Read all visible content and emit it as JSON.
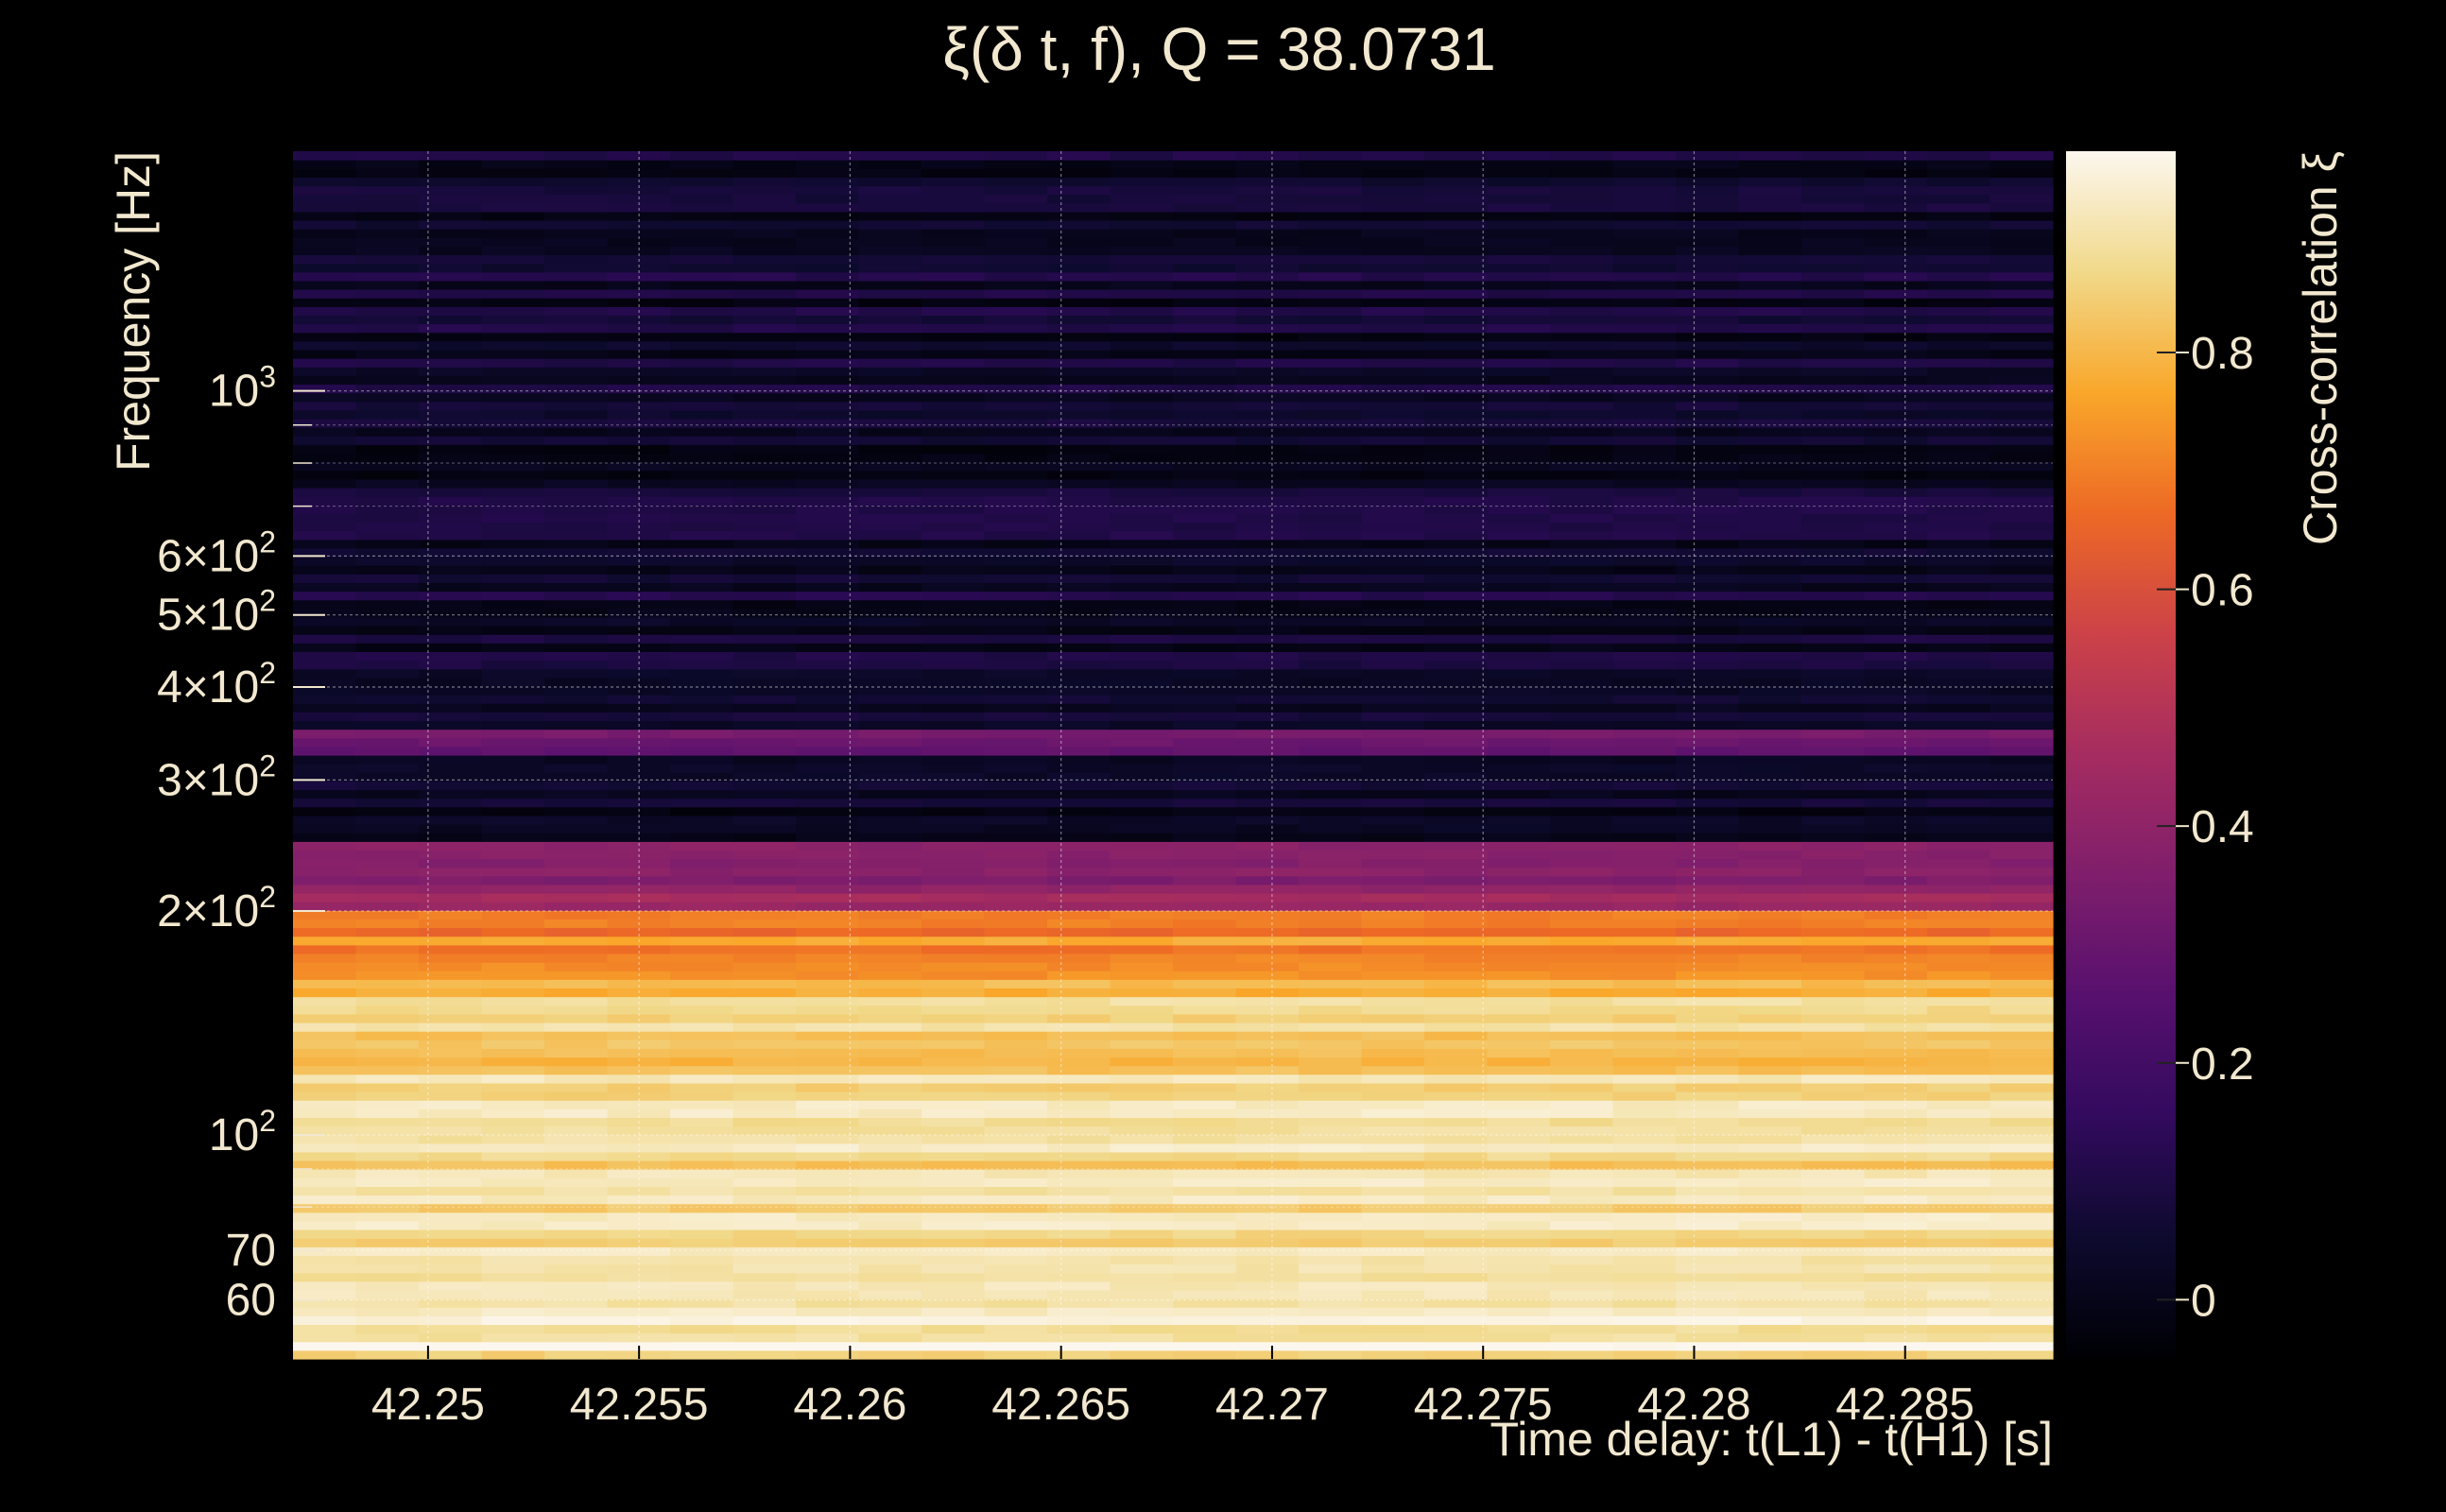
{
  "chart_data": {
    "type": "heatmap",
    "title": "ξ(δ t, f), Q = 38.0731",
    "xlabel": "Time delay: t(L1) - t(H1) [s]",
    "ylabel": "Frequency [Hz]",
    "colorbar_label": "Cross-correlation ξ",
    "colormap": "inferno",
    "background": "#000000",
    "text_color": "#f2e8cf",
    "y_scale": "log",
    "grid": true,
    "xlim": [
      42.2468,
      42.2885
    ],
    "ylim": [
      50,
      2100
    ],
    "x_ticks": [
      {
        "value": 42.25,
        "label": "42.25"
      },
      {
        "value": 42.255,
        "label": "42.255"
      },
      {
        "value": 42.26,
        "label": "42.26"
      },
      {
        "value": 42.265,
        "label": "42.265"
      },
      {
        "value": 42.27,
        "label": "42.27"
      },
      {
        "value": 42.275,
        "label": "42.275"
      },
      {
        "value": 42.28,
        "label": "42.28"
      },
      {
        "value": 42.285,
        "label": "42.285"
      }
    ],
    "y_ticks_labeled": [
      {
        "value": 60,
        "label": "60"
      },
      {
        "value": 70,
        "label": "70"
      },
      {
        "value": 100,
        "label": "10",
        "exp": "2"
      },
      {
        "value": 200,
        "label": "2×10",
        "exp": "2"
      },
      {
        "value": 300,
        "label": "3×10",
        "exp": "2"
      },
      {
        "value": 400,
        "label": "4×10",
        "exp": "2"
      },
      {
        "value": 500,
        "label": "5×10",
        "exp": "2"
      },
      {
        "value": 600,
        "label": "6×10",
        "exp": "2"
      },
      {
        "value": 1000,
        "label": "10",
        "exp": "3"
      }
    ],
    "y_ticks_minor": [
      80,
      90,
      700,
      800,
      900
    ],
    "clim": [
      -0.05,
      0.97
    ],
    "colorbar_ticks": [
      {
        "value": 0,
        "label": "0"
      },
      {
        "value": 0.2,
        "label": "0.2"
      },
      {
        "value": 0.4,
        "label": "0.4"
      },
      {
        "value": 0.6,
        "label": "0.6"
      },
      {
        "value": 0.8,
        "label": "0.8"
      }
    ],
    "frequency_bands": [
      {
        "f_min": 50,
        "f_max": 60,
        "xi": 0.92
      },
      {
        "f_min": 60,
        "f_max": 75,
        "xi": 0.88
      },
      {
        "f_min": 75,
        "f_max": 85,
        "xi": 0.9
      },
      {
        "f_min": 85,
        "f_max": 120,
        "xi": 0.87
      },
      {
        "f_min": 120,
        "f_max": 160,
        "xi": 0.84
      },
      {
        "f_min": 160,
        "f_max": 200,
        "xi": 0.72
      },
      {
        "f_min": 200,
        "f_max": 250,
        "xi": 0.4
      },
      {
        "f_min": 250,
        "f_max": 320,
        "xi": 0.02
      },
      {
        "f_min": 320,
        "f_max": 350,
        "xi": 0.28
      },
      {
        "f_min": 350,
        "f_max": 2100,
        "xi": 0.05
      }
    ]
  }
}
